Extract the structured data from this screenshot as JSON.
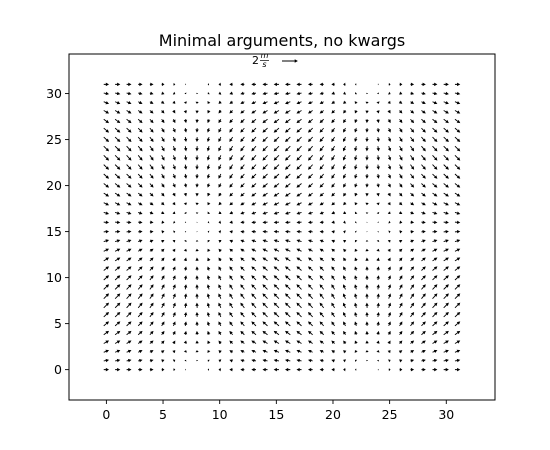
{
  "chart_data": {
    "type": "quiver",
    "title": "Minimal arguments, no kwargs",
    "xlabel": "",
    "ylabel": "",
    "xlim": [
      -3.3,
      34.3
    ],
    "ylim": [
      -3.3,
      34.3
    ],
    "xticks": [
      0,
      5,
      10,
      15,
      20,
      25,
      30
    ],
    "yticks": [
      0,
      5,
      10,
      15,
      20,
      25,
      30
    ],
    "xtick_labels": [
      "0",
      "5",
      "10",
      "15",
      "20",
      "25",
      "30"
    ],
    "ytick_labels": [
      "0",
      "5",
      "10",
      "15",
      "20",
      "25",
      "30"
    ],
    "grid": {
      "x": [
        0,
        1,
        2,
        3,
        4,
        5,
        6,
        7,
        8,
        9,
        10,
        11,
        12,
        13,
        14,
        15,
        16,
        17,
        18,
        19,
        20,
        21,
        22,
        23,
        24,
        25,
        26,
        27,
        28,
        29,
        30,
        31
      ],
      "y": [
        0,
        1,
        2,
        3,
        4,
        5,
        6,
        7,
        8,
        9,
        10,
        11,
        12,
        13,
        14,
        15,
        16,
        17,
        18,
        19,
        20,
        21,
        22,
        23,
        24,
        25,
        26,
        27,
        28,
        29,
        30,
        31
      ]
    },
    "field": {
      "U": "cos(2*pi*x/31)",
      "V": "sin(2*pi*y/31)"
    },
    "quiverkey": {
      "label": "2 m/s",
      "label_tex": {
        "coefficient": "2",
        "numerator": "m",
        "denominator": "s"
      },
      "magnitude": 2
    },
    "grid_lines": false,
    "legend": "none",
    "color": "#000000"
  }
}
